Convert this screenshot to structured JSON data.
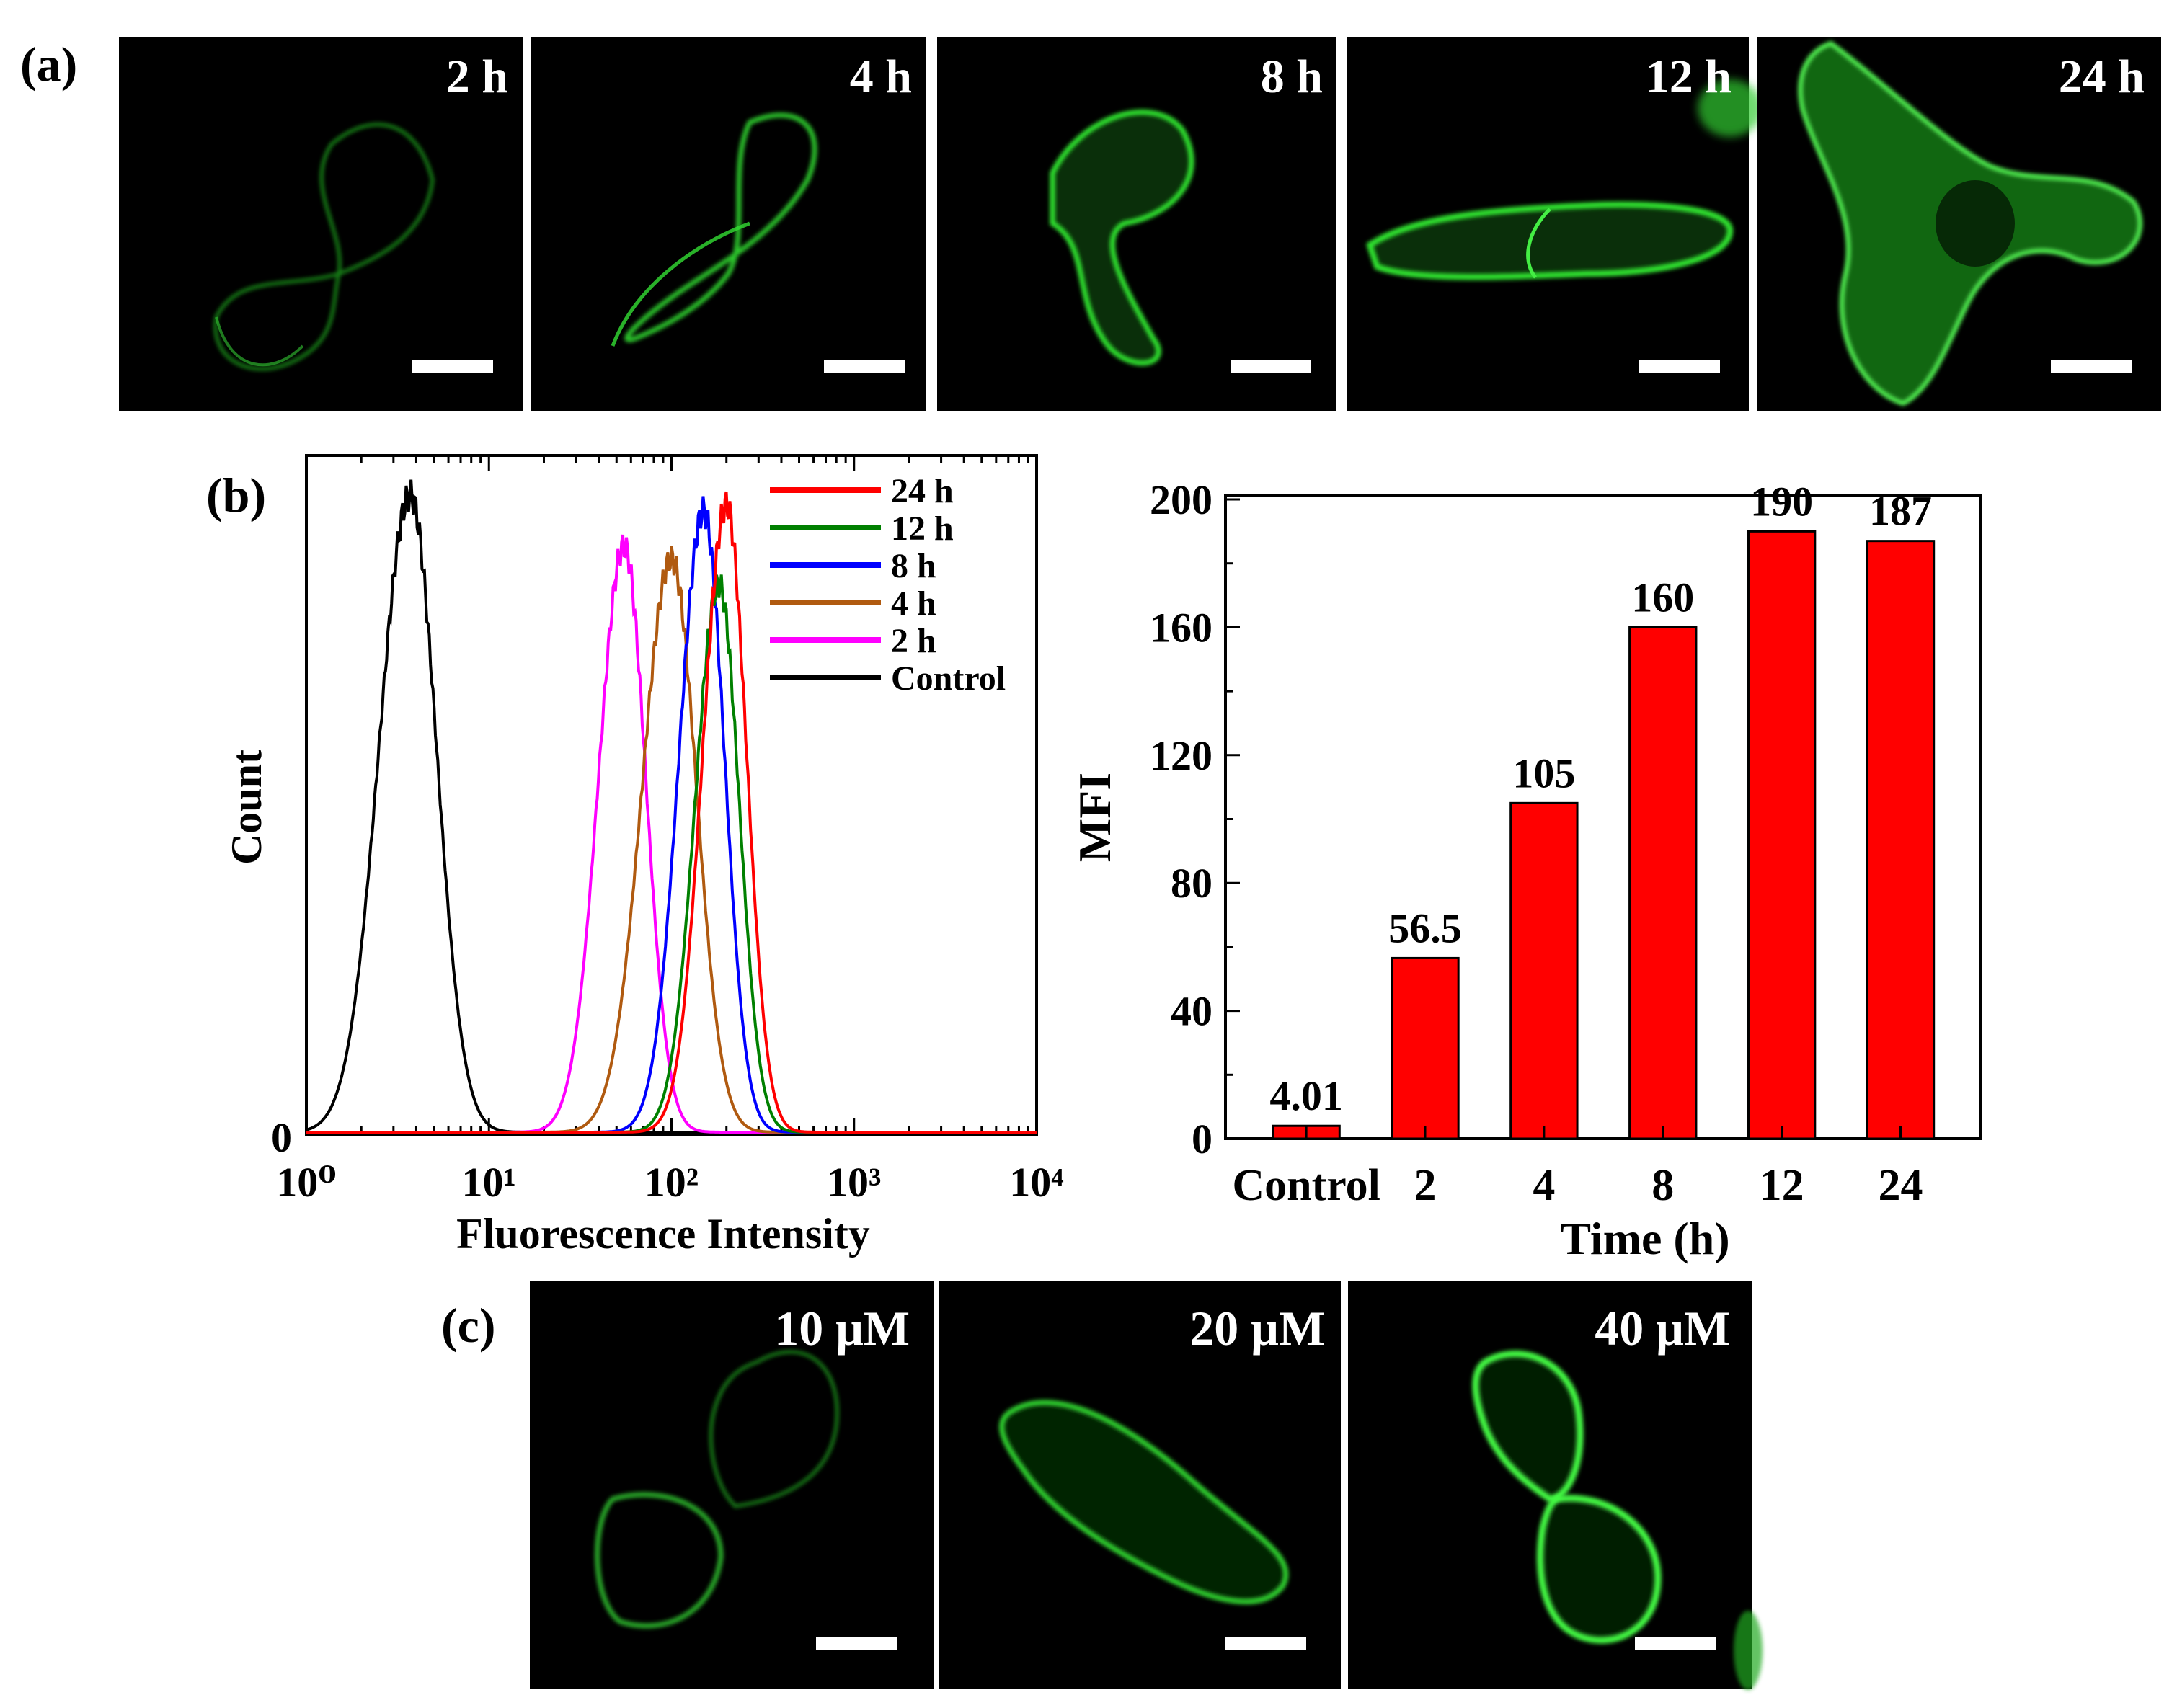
{
  "figure": {
    "panel_a_label": "(a)",
    "panel_b_label": "(b)",
    "panel_c_label": "(c)"
  },
  "micrographs_a": [
    {
      "time": "2 h"
    },
    {
      "time": "4 h"
    },
    {
      "time": "8 h"
    },
    {
      "time": "12 h"
    },
    {
      "time": "24 h"
    }
  ],
  "micrographs_c": [
    {
      "conc": "10 μM"
    },
    {
      "conc": "20 μM"
    },
    {
      "conc": "40 μM"
    }
  ],
  "colors": {
    "bar": "#ff0000",
    "fluorescence": "#22dd22",
    "h24": "#ff0000",
    "h12": "#008000",
    "h8": "#0000ff",
    "h4": "#b05a10",
    "h2": "#ff00ff",
    "control": "#000000"
  },
  "chart_data": [
    {
      "type": "line",
      "title": "",
      "xlabel": "Fluorescence Intensity",
      "ylabel": "Count",
      "xscale": "log",
      "xlim": [
        1,
        10000
      ],
      "x_tick_labels": [
        "10⁰",
        "10¹",
        "10²",
        "10³",
        "10⁴"
      ],
      "y_tick_labels": [
        "0"
      ],
      "legend_position": "top-right",
      "series": [
        {
          "name": "24 h",
          "key": "h24",
          "peak_x": 200,
          "peak_height": 0.985,
          "width": 0.13
        },
        {
          "name": "12 h",
          "key": "h12",
          "peak_x": 182,
          "peak_height": 0.86,
          "width": 0.13
        },
        {
          "name": "8 h",
          "key": "h8",
          "peak_x": 150,
          "peak_height": 0.975,
          "width": 0.135
        },
        {
          "name": "4 h",
          "key": "h4",
          "peak_x": 100,
          "peak_height": 0.9,
          "width": 0.16
        },
        {
          "name": "2 h",
          "key": "h2",
          "peak_x": 55,
          "peak_height": 0.92,
          "width": 0.14
        },
        {
          "name": "Control",
          "key": "control",
          "peak_x": 3.7,
          "peak_height": 1.0,
          "width": 0.17
        }
      ]
    },
    {
      "type": "bar",
      "title": "",
      "xlabel": "Time (h)",
      "ylabel": "MFI",
      "categories": [
        "Control",
        "2",
        "4",
        "8",
        "12",
        "24"
      ],
      "values": [
        4.01,
        56.5,
        105,
        160,
        190,
        187
      ],
      "value_labels": [
        "4.01",
        "56.5",
        "105",
        "160",
        "190",
        "187"
      ],
      "ylim": [
        0,
        200
      ],
      "yticks": [
        0,
        40,
        80,
        120,
        160,
        200
      ],
      "ytick_labels": [
        "0",
        "40",
        "80",
        "120",
        "160",
        "200"
      ]
    }
  ]
}
